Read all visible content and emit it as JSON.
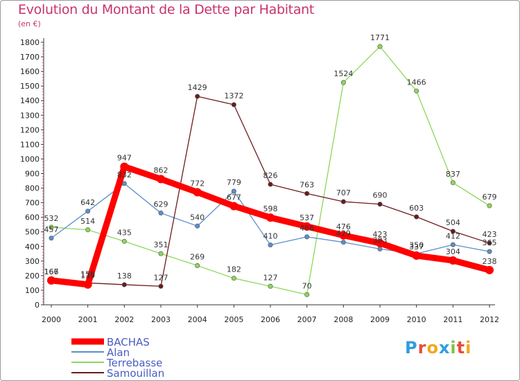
{
  "chart_data": {
    "type": "line",
    "title": "Evolution du Montant de la Dette par Habitant",
    "subtitle": "(en €)",
    "xlabel": "",
    "ylabel": "",
    "ylim": [
      0,
      1800
    ],
    "yticks": [
      0,
      100,
      200,
      300,
      400,
      500,
      600,
      700,
      800,
      900,
      1000,
      1100,
      1200,
      1300,
      1400,
      1500,
      1600,
      1700,
      1800
    ],
    "x": [
      "2000",
      "2001",
      "2002",
      "2003",
      "2004",
      "2005",
      "2006",
      "2007",
      "2008",
      "2009",
      "2010",
      "2011",
      "2012"
    ],
    "grid": false,
    "legend": "bottom-left",
    "series": [
      {
        "name": "BACHAS",
        "color": "#ff0000",
        "values": [
          167,
          139,
          947,
          862,
          772,
          677,
          598,
          537,
          476,
          423,
          337,
          304,
          238
        ]
      },
      {
        "name": "Alan",
        "color": "#5b8fc9",
        "values": [
          457,
          642,
          832,
          629,
          540,
          779,
          410,
          466,
          429,
          383,
          350,
          412,
          365
        ]
      },
      {
        "name": "Terrebasse",
        "color": "#8ed65a",
        "values": [
          532,
          514,
          435,
          351,
          269,
          182,
          127,
          70,
          1524,
          1771,
          1466,
          837,
          679
        ]
      },
      {
        "name": "Samouillan",
        "color": "#6b1b1b",
        "values": [
          166,
          150,
          138,
          127,
          1429,
          1372,
          826,
          763,
          707,
          690,
          603,
          504,
          423
        ]
      }
    ]
  },
  "brand": {
    "letters": [
      "P",
      "r",
      "o",
      "x",
      "i",
      "t",
      "i"
    ],
    "colors": [
      "#2e9ee0",
      "#e84b3c",
      "#f2a81d",
      "#2e9ee0",
      "#7fc241",
      "#e84b3c",
      "#f2a81d"
    ]
  }
}
